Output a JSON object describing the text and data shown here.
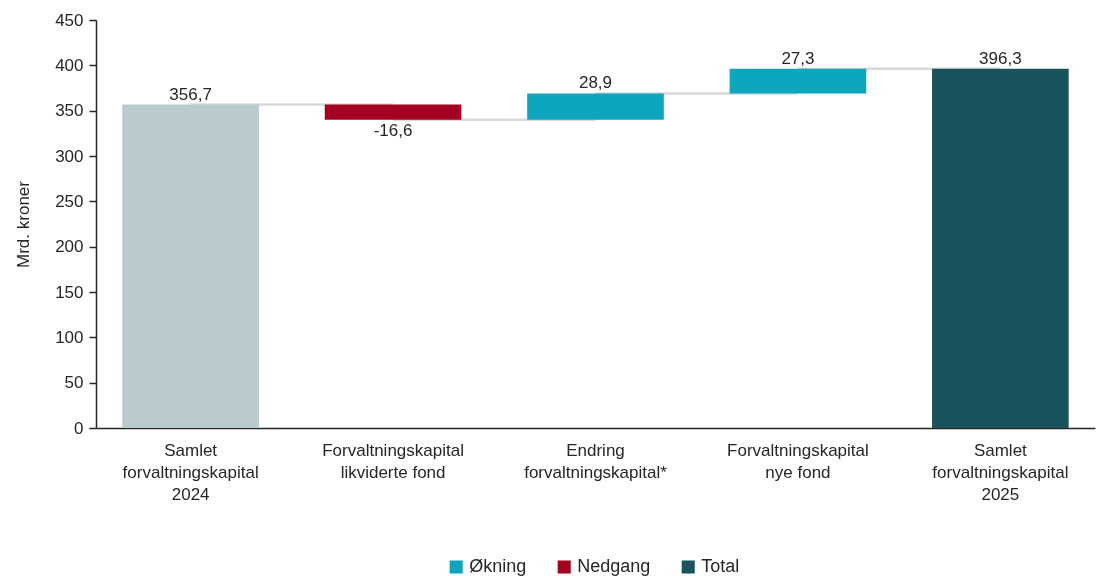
{
  "chart_data": {
    "type": "bar",
    "categories": [
      "Samlet forvaltningskapital 2024",
      "Forvaltningskapital likviderte fond",
      "Endring forvaltningskapital*",
      "Forvaltningskapital nye fond",
      "Samlet forvaltningskapital 2025"
    ],
    "series": [
      {
        "color": "#b9cbcf",
        "values": [
          356.7,
          null,
          null,
          null,
          null
        ],
        "value_labels": [
          "356,7",
          null,
          null,
          null,
          null
        ]
      },
      {
        "name": "Økning",
        "color": "#0ea5bf",
        "values": [
          null,
          null,
          28.9,
          27.3,
          null
        ],
        "base": [
          null,
          null,
          340.1,
          369.0,
          null
        ],
        "value_labels": [
          null,
          null,
          "28,9",
          "27,3",
          null
        ]
      },
      {
        "name": "Nedgang",
        "color": "#a50021",
        "values": [
          null,
          -16.6,
          null,
          null,
          null
        ],
        "base": [
          null,
          356.7,
          null,
          null,
          null
        ],
        "value_labels": [
          null,
          "-16,6",
          null,
          null,
          null
        ]
      },
      {
        "name": "Total",
        "color": "#19535c",
        "values": [
          null,
          null,
          null,
          null,
          396.3
        ],
        "value_labels": [
          null,
          null,
          null,
          null,
          "396,3"
        ]
      }
    ],
    "ylabel": "Mrd. kroner",
    "ylim": [
      0,
      450
    ],
    "yticks": [
      0,
      50,
      100,
      150,
      200,
      250,
      300,
      350,
      400,
      450
    ],
    "legend": "bottom"
  }
}
